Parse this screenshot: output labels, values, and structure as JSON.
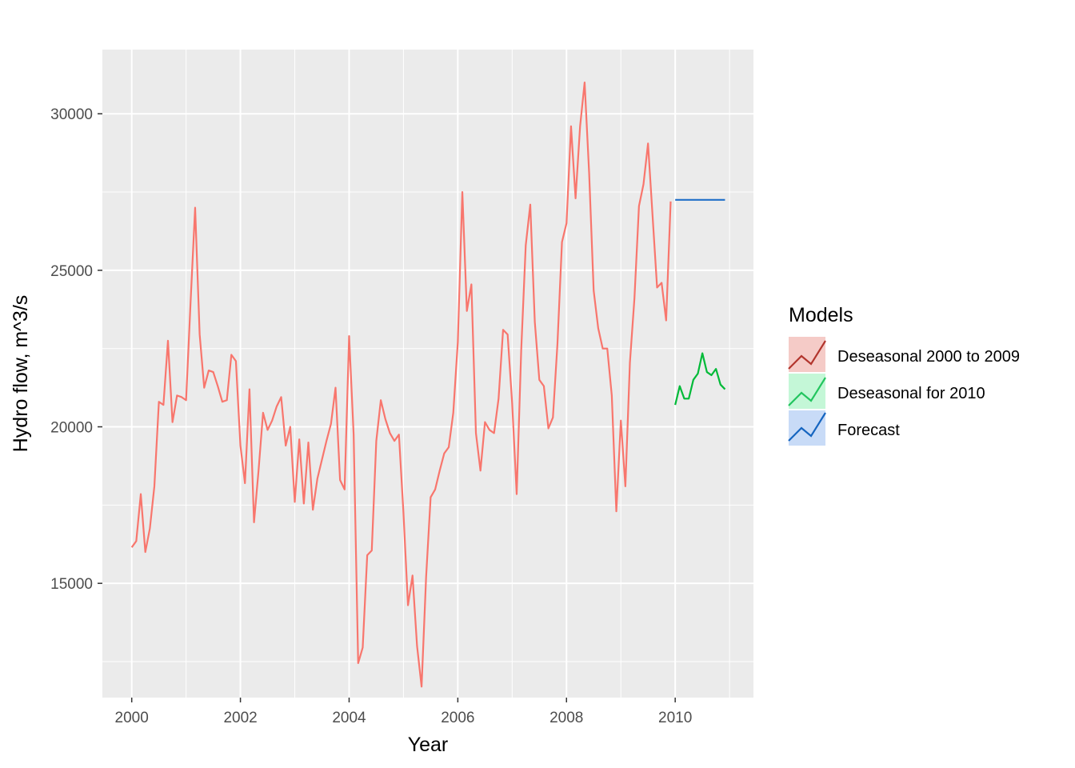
{
  "chart_data": {
    "type": "line",
    "title": "",
    "xlabel": "Year",
    "ylabel": "Hydro flow, m^3/s",
    "xlim": [
      1999.46,
      2011.44
    ],
    "ylim": [
      11350,
      32050
    ],
    "x_ticks": [
      2000,
      2002,
      2004,
      2006,
      2008,
      2010
    ],
    "x_tick_labels": [
      "2000",
      "2002",
      "2004",
      "2006",
      "2008",
      "2010"
    ],
    "y_ticks": [
      15000,
      20000,
      25000,
      30000
    ],
    "y_tick_labels": [
      "15000",
      "20000",
      "25000",
      "30000"
    ],
    "grid": true,
    "legend": {
      "title": "Models",
      "placement": "right",
      "entries": [
        {
          "name": "Deseasonal 2000 to 2009",
          "color": "#F8766D",
          "icon_line": "#B2352D",
          "icon_fill": "#F5CBC7"
        },
        {
          "name": "Deseasonal for 2010",
          "color": "#00BA38",
          "icon_line": "#22C55E",
          "icon_fill": "#C4F7D7"
        },
        {
          "name": "Forecast",
          "color": "#1F6FC8",
          "icon_line": "#1565C0",
          "icon_fill": "#C8DBF7"
        }
      ]
    },
    "series": [
      {
        "name": "Deseasonal 2000 to 2009",
        "color": "#F8766D",
        "x_start": 2000,
        "x_step": 0.083333,
        "values": [
          16150,
          16350,
          17850,
          16000,
          16750,
          18100,
          20800,
          20700,
          22750,
          20150,
          21000,
          20950,
          20850,
          24000,
          27000,
          22950,
          21250,
          21800,
          21750,
          21300,
          20800,
          20850,
          22300,
          22100,
          19400,
          18200,
          21200,
          16950,
          18600,
          20450,
          19900,
          20200,
          20650,
          20950,
          19400,
          20000,
          17600,
          19600,
          17550,
          19500,
          17350,
          18350,
          18950,
          19550,
          20100,
          21250,
          18300,
          18000,
          22900,
          19750,
          12450,
          12950,
          15900,
          16050,
          19550,
          20850,
          20250,
          19800,
          19550,
          19750,
          17250,
          14300,
          15250,
          13000,
          11700,
          15200,
          17750,
          18000,
          18600,
          19150,
          19350,
          20450,
          22700,
          27500,
          23700,
          24550,
          19800,
          18600,
          20150,
          19900,
          19800,
          20900,
          23100,
          22950,
          20750,
          17850,
          22450,
          25800,
          27100,
          23350,
          21500,
          21300,
          19950,
          20300,
          22650,
          25900,
          26500,
          29600,
          27300,
          29600,
          31000,
          28100,
          24350,
          23150,
          22500,
          22500,
          21000,
          17300,
          20200,
          18100,
          22050,
          24100,
          27050,
          27750,
          29050,
          26750,
          24450,
          24600,
          23400,
          27200
        ]
      },
      {
        "name": "Deseasonal for 2010",
        "color": "#00BA38",
        "x_start": 2010,
        "x_step": 0.083333,
        "values": [
          20700,
          21300,
          20900,
          20900,
          21500,
          21700,
          22350,
          21750,
          21650,
          21850,
          21350,
          21200
        ]
      },
      {
        "name": "Forecast",
        "color": "#1F6FC8",
        "x_start": 2010,
        "x_step": 0.083333,
        "values": [
          27250,
          27250,
          27250,
          27250,
          27250,
          27250,
          27250,
          27250,
          27250,
          27250,
          27250,
          27250
        ]
      }
    ]
  }
}
